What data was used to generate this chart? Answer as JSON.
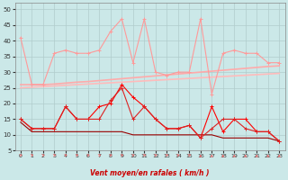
{
  "xlabel": "Vent moyen/en rafales ( km/h )",
  "background_color": "#cbe8e8",
  "grid_color": "#b0cccc",
  "xlim": [
    -0.5,
    23.5
  ],
  "ylim": [
    5,
    52
  ],
  "yticks": [
    5,
    10,
    15,
    20,
    25,
    30,
    35,
    40,
    45,
    50
  ],
  "xticks": [
    0,
    1,
    2,
    3,
    4,
    5,
    6,
    7,
    8,
    9,
    10,
    11,
    12,
    13,
    14,
    15,
    16,
    17,
    18,
    19,
    20,
    21,
    22,
    23
  ],
  "x": [
    0,
    1,
    2,
    3,
    4,
    5,
    6,
    7,
    8,
    9,
    10,
    11,
    12,
    13,
    14,
    15,
    16,
    17,
    18,
    19,
    20,
    21,
    22,
    23
  ],
  "line_gust_y": [
    41,
    26,
    26,
    36,
    37,
    36,
    36,
    37,
    43,
    47,
    33,
    47,
    30,
    29,
    30,
    30,
    47,
    23,
    36,
    37,
    36,
    36,
    33,
    33
  ],
  "line_trend1_y": [
    26,
    26,
    26,
    26.2,
    26.5,
    26.8,
    27,
    27.3,
    27.6,
    27.9,
    28.2,
    28.5,
    28.8,
    29.1,
    29.4,
    29.7,
    30,
    30.3,
    30.6,
    30.9,
    31.2,
    31.5,
    31.8,
    32
  ],
  "line_trend2_y": [
    25,
    25.2,
    25.4,
    25.6,
    25.8,
    26,
    26.2,
    26.4,
    26.6,
    26.8,
    27,
    27.2,
    27.4,
    27.6,
    27.8,
    28,
    28.2,
    28.4,
    28.6,
    28.8,
    29,
    29.2,
    29.4,
    29.6
  ],
  "line_mean1_y": [
    15,
    12,
    12,
    12,
    19,
    15,
    15,
    19,
    20,
    26,
    22,
    19,
    15,
    12,
    12,
    13,
    9,
    19,
    11,
    15,
    15,
    11,
    11,
    8
  ],
  "line_mean2_y": [
    15,
    12,
    12,
    12,
    19,
    15,
    15,
    15,
    21,
    25,
    15,
    19,
    15,
    12,
    12,
    13,
    9,
    12,
    15,
    15,
    12,
    11,
    11,
    8
  ],
  "line_base_y": [
    14,
    11,
    11,
    11,
    11,
    11,
    11,
    11,
    11,
    11,
    10,
    10,
    10,
    10,
    10,
    10,
    10,
    10,
    9,
    9,
    9,
    9,
    9,
    8
  ],
  "line_gust_color": "#ff9999",
  "line_trend1_color": "#ffaaaa",
  "line_trend2_color": "#ffbbbb",
  "line_mean1_color": "#ff0000",
  "line_mean2_color": "#dd2222",
  "line_base_color": "#990000",
  "arrow_color": "#ff6666",
  "xlabel_color": "#cc0000",
  "tick_color": "#333333",
  "arrow_angles": [
    45,
    45,
    45,
    45,
    45,
    45,
    45,
    45,
    45,
    45,
    45,
    45,
    45,
    45,
    45,
    45,
    0,
    0,
    0,
    0,
    0,
    0,
    0,
    0
  ]
}
